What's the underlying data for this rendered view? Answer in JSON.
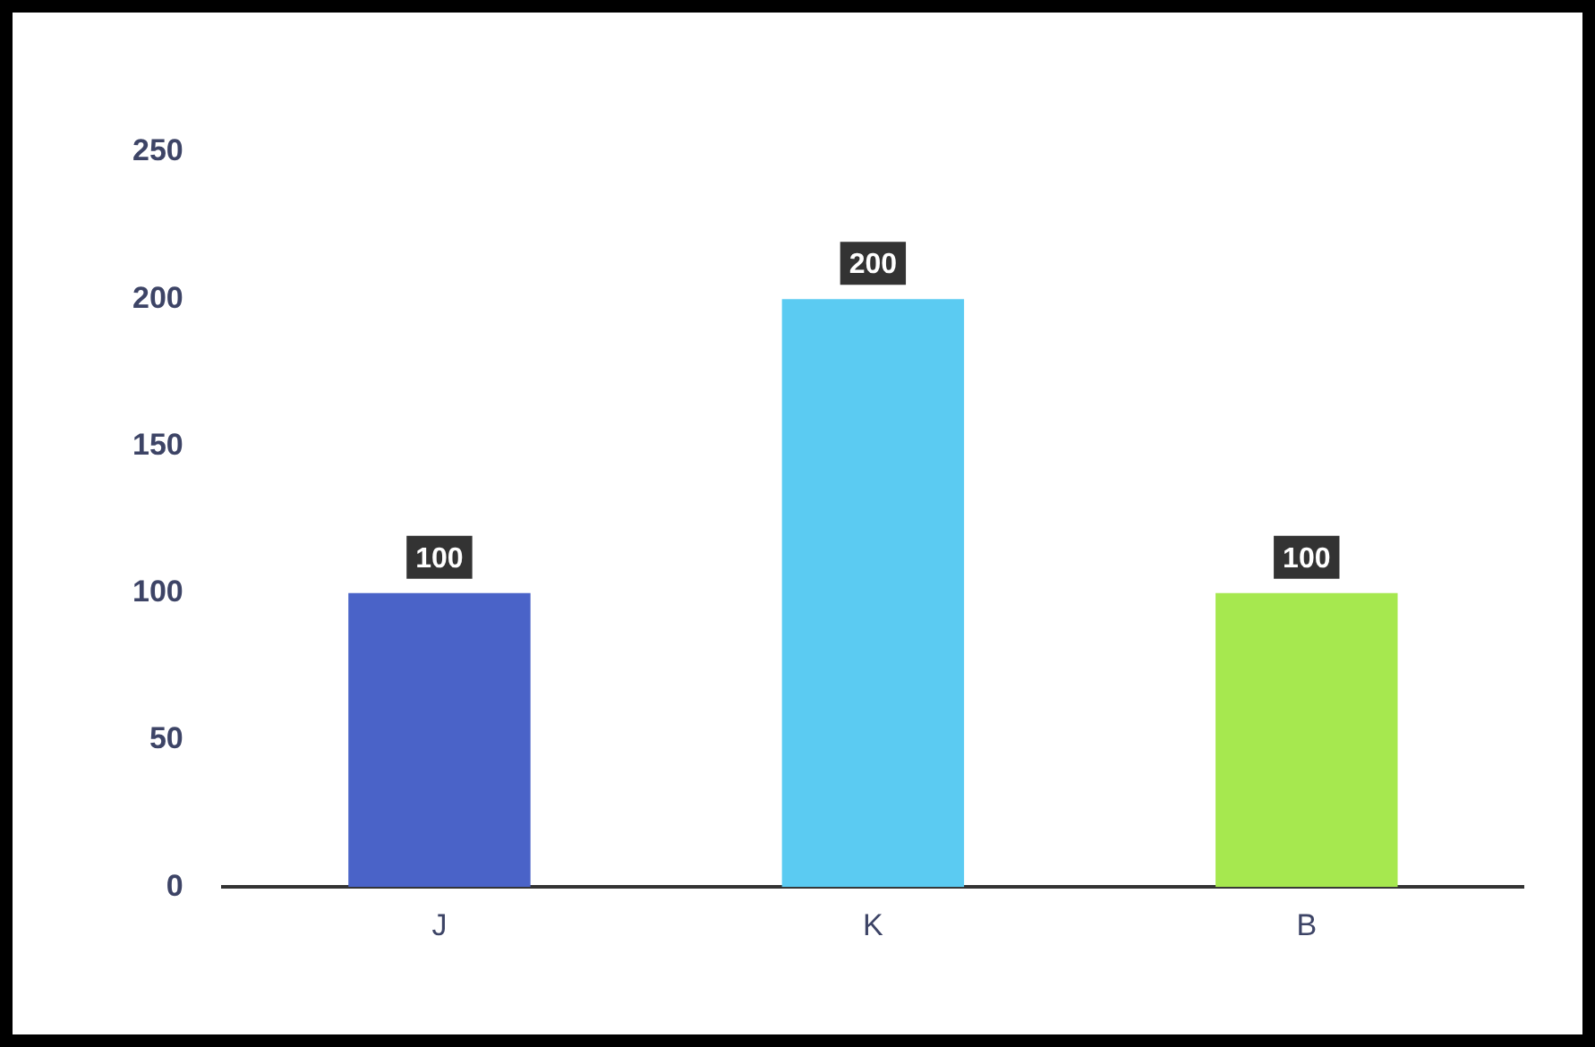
{
  "chart_data": {
    "type": "bar",
    "categories": [
      "J",
      "K",
      "B"
    ],
    "values": [
      100,
      200,
      100
    ],
    "colors": [
      "#4a63c8",
      "#5bcbf2",
      "#a6e84f"
    ],
    "ylim": [
      0,
      250
    ],
    "yticks": [
      0,
      50,
      100,
      150,
      200,
      250
    ],
    "grid": false,
    "legend": false,
    "data_labels": true
  }
}
